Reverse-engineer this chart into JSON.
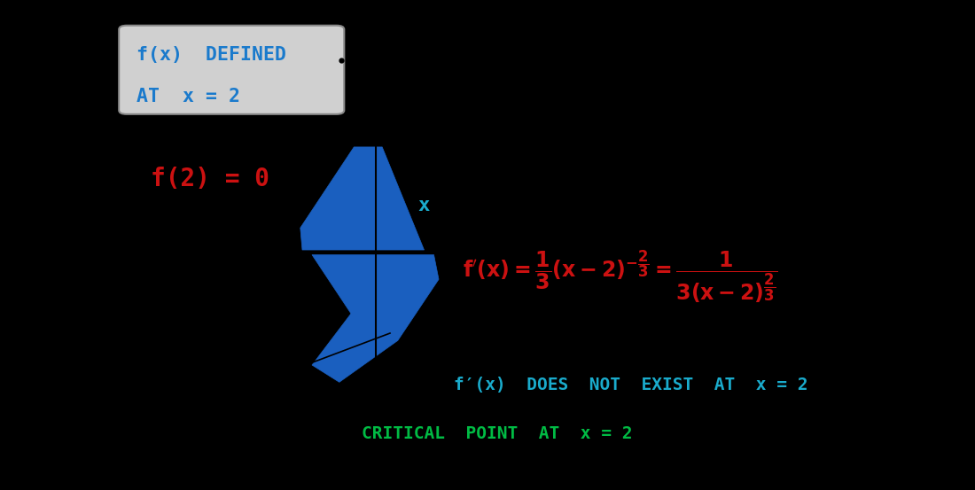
{
  "bg_color": "#000000",
  "curve_color": "#1a5fbf",
  "text_box_bg": "#d0d0d0",
  "text_box_edge": "#888888",
  "text_box_text_color": "#1a7acc",
  "label_f2_color": "#cc1111",
  "x_label_color": "#1aabcc",
  "derivative_color": "#cc1111",
  "fpx_color": "#1aabcc",
  "critical_color": "#00bb44",
  "box_text_line1": "f(x)  DEFINED",
  "box_text_line2": "AT  x = 2",
  "f2_label": "f(2) = 0",
  "x_label": "x",
  "fpx_line": "f′(x)  DOES  NOT  EXIST  AT  x = 2",
  "critical_line": "CRITICAL  POINT  AT  x = 2"
}
